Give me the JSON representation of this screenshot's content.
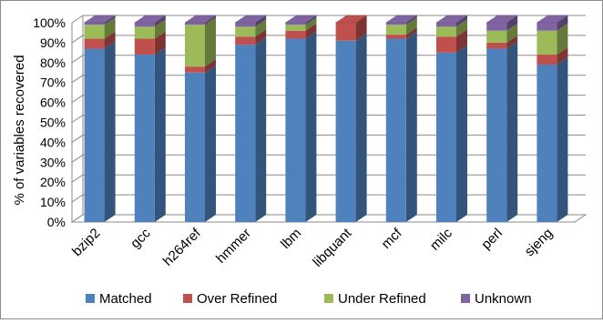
{
  "chart_data": {
    "type": "bar",
    "stacked": true,
    "style": "3d-column",
    "categories": [
      "bzip2",
      "gcc",
      "h264ref",
      "hmmer",
      "lbm",
      "libquant",
      "mcf",
      "milc",
      "perl",
      "sjeng"
    ],
    "series": [
      {
        "name": "Matched",
        "color": "#4F81BD",
        "values": [
          87,
          84,
          75,
          89,
          92,
          91,
          92,
          85,
          87,
          79
        ]
      },
      {
        "name": "Over Refined",
        "color": "#C0504D",
        "values": [
          5,
          8,
          3,
          4,
          4,
          9,
          2,
          8,
          3,
          5
        ]
      },
      {
        "name": "Under Refined",
        "color": "#9BBB59",
        "values": [
          7,
          6,
          21,
          5,
          3,
          0,
          5,
          5,
          6,
          12
        ]
      },
      {
        "name": "Unknown",
        "color": "#8064A2",
        "values": [
          1,
          2,
          1,
          2,
          1,
          0,
          1,
          2,
          4,
          4
        ]
      }
    ],
    "ylabel": "% of variables recovered",
    "xlabel": "",
    "ylim": [
      0,
      100
    ],
    "yticks": [
      "0%",
      "10%",
      "20%",
      "30%",
      "40%",
      "50%",
      "60%",
      "70%",
      "80%",
      "90%",
      "100%"
    ],
    "grid": true,
    "legend_position": "bottom"
  }
}
